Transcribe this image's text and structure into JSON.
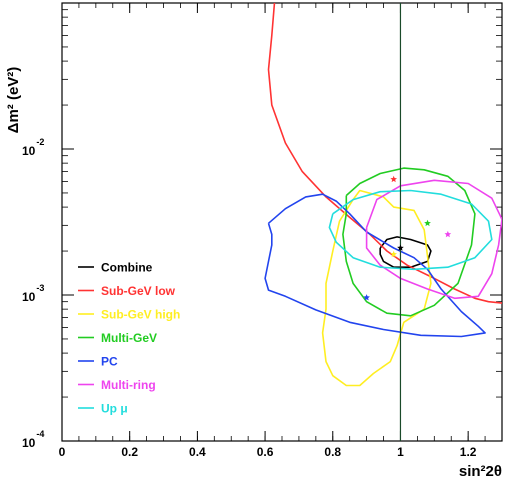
{
  "chart_data": {
    "type": "line",
    "title": "",
    "xlabel": "sin²2θ",
    "ylabel": "Δm² (eV²)",
    "xscale": "linear",
    "yscale": "log",
    "xlim": [
      0,
      1.3
    ],
    "ylim": [
      0.0001,
      0.1
    ],
    "x_ticks": [
      0,
      0.2,
      0.4,
      0.6,
      0.8,
      1,
      1.2
    ],
    "x_tick_labels": [
      "0",
      "0.2",
      "0.4",
      "0.6",
      "0.8",
      "1",
      "1.2"
    ],
    "y_ticks": [
      0.0001,
      0.001,
      0.01
    ],
    "y_tick_labels": [
      {
        "base": "10",
        "exp": "-4"
      },
      {
        "base": "10",
        "exp": "-3"
      },
      {
        "base": "10",
        "exp": "-2"
      }
    ],
    "grid": false,
    "legend_position": "lower-left",
    "physical_boundary_x": 1.0,
    "series": [
      {
        "name": "Combine",
        "color": "#000000",
        "points": [
          [
            0.94,
            0.0021
          ],
          [
            0.96,
            0.0024
          ],
          [
            0.99,
            0.0025
          ],
          [
            1.03,
            0.0024
          ],
          [
            1.08,
            0.0022
          ],
          [
            1.09,
            0.002
          ],
          [
            1.08,
            0.0017
          ],
          [
            1.03,
            0.00155
          ],
          [
            0.98,
            0.00155
          ],
          [
            0.95,
            0.0017
          ],
          [
            0.94,
            0.0019
          ],
          [
            0.94,
            0.0021
          ]
        ],
        "best_fit": [
          1.0,
          0.0021
        ]
      },
      {
        "name": "Sub-GeV low",
        "color": "#ff3333",
        "points": [
          [
            0.63,
            0.115
          ],
          [
            0.62,
            0.06
          ],
          [
            0.61,
            0.035
          ],
          [
            0.62,
            0.02
          ],
          [
            0.66,
            0.011
          ],
          [
            0.71,
            0.007
          ],
          [
            0.78,
            0.0047
          ],
          [
            0.85,
            0.0034
          ],
          [
            0.91,
            0.0026
          ],
          [
            0.96,
            0.002
          ],
          [
            1.02,
            0.0016
          ],
          [
            1.1,
            0.0013
          ],
          [
            1.16,
            0.0011
          ],
          [
            1.22,
            0.00095
          ],
          [
            1.26,
            0.0009
          ],
          [
            1.3,
            0.00088
          ]
        ],
        "best_fit": [
          0.98,
          0.0062
        ]
      },
      {
        "name": "Sub-GeV high",
        "color": "#ffee22",
        "points": [
          [
            0.86,
            0.0045
          ],
          [
            0.88,
            0.0052
          ],
          [
            0.95,
            0.0047
          ],
          [
            0.98,
            0.004
          ],
          [
            1.04,
            0.0038
          ],
          [
            1.07,
            0.0028
          ],
          [
            1.09,
            0.0012
          ],
          [
            1.07,
            0.0008
          ],
          [
            1.01,
            0.00065
          ],
          [
            0.99,
            0.00045
          ],
          [
            0.97,
            0.00035
          ],
          [
            0.92,
            0.00029
          ],
          [
            0.88,
            0.00024
          ],
          [
            0.84,
            0.00024
          ],
          [
            0.8,
            0.00028
          ],
          [
            0.78,
            0.00035
          ],
          [
            0.77,
            0.00055
          ],
          [
            0.78,
            0.0008
          ],
          [
            0.78,
            0.0012
          ],
          [
            0.8,
            0.002
          ],
          [
            0.82,
            0.0032
          ],
          [
            0.86,
            0.0045
          ]
        ],
        "best_fit": [
          0.98,
          0.0019
        ]
      },
      {
        "name": "Multi-GeV",
        "color": "#22cc22",
        "points": [
          [
            0.84,
            0.0048
          ],
          [
            0.88,
            0.0058
          ],
          [
            0.94,
            0.0068
          ],
          [
            1.01,
            0.0074
          ],
          [
            1.07,
            0.0072
          ],
          [
            1.14,
            0.0065
          ],
          [
            1.19,
            0.0052
          ],
          [
            1.22,
            0.0036
          ],
          [
            1.21,
            0.0022
          ],
          [
            1.17,
            0.0012
          ],
          [
            1.1,
            0.00085
          ],
          [
            1.03,
            0.00072
          ],
          [
            0.96,
            0.00075
          ],
          [
            0.9,
            0.0009
          ],
          [
            0.86,
            0.0012
          ],
          [
            0.84,
            0.0017
          ],
          [
            0.83,
            0.0026
          ],
          [
            0.84,
            0.0036
          ],
          [
            0.84,
            0.0048
          ]
        ],
        "best_fit": [
          1.08,
          0.0031
        ]
      },
      {
        "name": "PC",
        "color": "#2244ee",
        "points": [
          [
            0.61,
            0.0031
          ],
          [
            0.66,
            0.0039
          ],
          [
            0.72,
            0.0047
          ],
          [
            0.77,
            0.0049
          ],
          [
            0.81,
            0.0044
          ],
          [
            0.85,
            0.0036
          ],
          [
            0.9,
            0.0027
          ],
          [
            0.98,
            0.0021
          ],
          [
            1.04,
            0.0018
          ],
          [
            1.08,
            0.0015
          ],
          [
            1.12,
            0.0011
          ],
          [
            1.18,
            0.00077
          ],
          [
            1.23,
            0.00061
          ],
          [
            1.25,
            0.00055
          ],
          [
            1.18,
            0.00052
          ],
          [
            1.06,
            0.00053
          ],
          [
            0.95,
            0.00058
          ],
          [
            0.85,
            0.00065
          ],
          [
            0.75,
            0.00079
          ],
          [
            0.66,
            0.00098
          ],
          [
            0.61,
            0.00108
          ],
          [
            0.6,
            0.0013
          ],
          [
            0.61,
            0.0017
          ],
          [
            0.62,
            0.0022
          ],
          [
            0.62,
            0.0026
          ],
          [
            0.61,
            0.0031
          ]
        ],
        "best_fit": [
          0.9,
          0.00096
        ]
      },
      {
        "name": "Multi-ring",
        "color": "#ee44ee",
        "points": [
          [
            0.9,
            0.0029
          ],
          [
            0.93,
            0.0045
          ],
          [
            1.0,
            0.0056
          ],
          [
            1.1,
            0.0061
          ],
          [
            1.2,
            0.0058
          ],
          [
            1.27,
            0.0046
          ],
          [
            1.3,
            0.0033
          ],
          [
            1.29,
            0.0022
          ],
          [
            1.27,
            0.0014
          ],
          [
            1.23,
            0.00098
          ],
          [
            1.16,
            0.00095
          ],
          [
            1.08,
            0.0011
          ],
          [
            1.0,
            0.0013
          ],
          [
            0.94,
            0.0016
          ],
          [
            0.9,
            0.0021
          ],
          [
            0.9,
            0.0029
          ]
        ],
        "best_fit": [
          1.14,
          0.0026
        ]
      },
      {
        "name": "Up μ",
        "color": "#22dddd",
        "points": [
          [
            0.8,
            0.0036
          ],
          [
            0.86,
            0.0045
          ],
          [
            0.94,
            0.0051
          ],
          [
            1.03,
            0.0052
          ],
          [
            1.12,
            0.0049
          ],
          [
            1.21,
            0.0042
          ],
          [
            1.26,
            0.0032
          ],
          [
            1.27,
            0.0024
          ],
          [
            1.22,
            0.0018
          ],
          [
            1.14,
            0.00155
          ],
          [
            1.04,
            0.0015
          ],
          [
            0.94,
            0.00155
          ],
          [
            0.86,
            0.0018
          ],
          [
            0.81,
            0.0023
          ],
          [
            0.79,
            0.0029
          ],
          [
            0.8,
            0.0036
          ]
        ],
        "best_fit": null
      }
    ]
  }
}
